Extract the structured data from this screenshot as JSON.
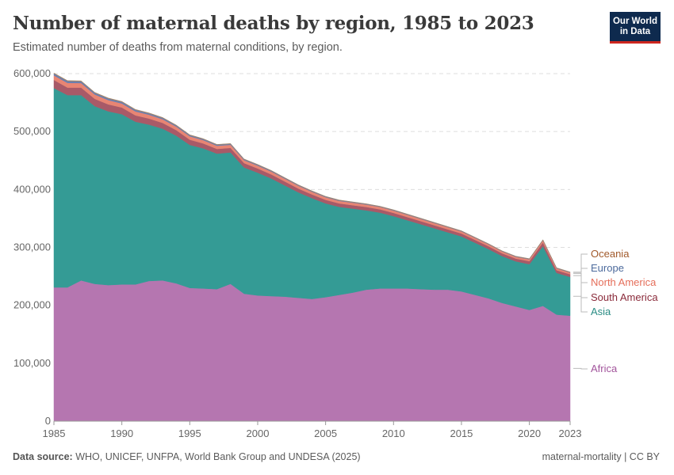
{
  "header": {
    "title": "Number of maternal deaths by region, 1985 to 2023",
    "subtitle": "Estimated number of deaths from maternal conditions, by region.",
    "logo_line1": "Our World",
    "logo_line2": "in Data"
  },
  "footer": {
    "source_label": "Data source:",
    "source_text": " WHO, UNICEF, UNFPA, World Bank Group and UNDESA (2025)",
    "right_text": "maternal-mortality | CC BY"
  },
  "chart_data": {
    "type": "area",
    "stacked": true,
    "title": "Number of maternal deaths by region, 1985 to 2023",
    "subtitle": "Estimated number of deaths from maternal conditions, by region.",
    "xlabel": "",
    "ylabel": "",
    "xlim": [
      1985,
      2023
    ],
    "ylim": [
      0,
      600000
    ],
    "grid": "horizontal-dashed",
    "legend": "right-inline",
    "x_ticks": [
      1985,
      1990,
      1995,
      2000,
      2005,
      2010,
      2015,
      2020,
      2023
    ],
    "y_ticks": [
      0,
      100000,
      200000,
      300000,
      400000,
      500000,
      600000
    ],
    "y_tick_labels": [
      "0",
      "100,000",
      "200,000",
      "300,000",
      "400,000",
      "500,000",
      "600,000"
    ],
    "x": [
      1985,
      1986,
      1987,
      1988,
      1989,
      1990,
      1991,
      1992,
      1993,
      1994,
      1995,
      1996,
      1997,
      1998,
      1999,
      2000,
      2001,
      2002,
      2003,
      2004,
      2005,
      2006,
      2007,
      2008,
      2009,
      2010,
      2011,
      2012,
      2013,
      2014,
      2015,
      2016,
      2017,
      2018,
      2019,
      2020,
      2021,
      2022,
      2023
    ],
    "series": [
      {
        "name": "Africa",
        "color": "#b576b0",
        "label_color": "#a2559c",
        "values": [
          231000,
          231000,
          243000,
          237000,
          235000,
          236000,
          236000,
          242000,
          243000,
          238000,
          230000,
          229000,
          228000,
          237000,
          220000,
          217000,
          216000,
          215000,
          213000,
          211000,
          214000,
          218000,
          222000,
          227000,
          229000,
          229000,
          229000,
          228000,
          227000,
          227000,
          224000,
          218000,
          212000,
          204000,
          198000,
          192000,
          199000,
          184000,
          182000
        ]
      },
      {
        "name": "Asia",
        "color": "#349b95",
        "label_color": "#2a8c84",
        "values": [
          344000,
          332000,
          320000,
          307000,
          300000,
          294000,
          281000,
          270000,
          262000,
          255000,
          247000,
          242000,
          234000,
          227000,
          218000,
          212000,
          203000,
          192000,
          182000,
          174000,
          162000,
          152000,
          145000,
          137000,
          131000,
          125000,
          118000,
          112000,
          106000,
          99000,
          95000,
          90000,
          85000,
          81000,
          78000,
          79000,
          103000,
          72000,
          67000
        ]
      },
      {
        "name": "South America",
        "color": "#a85a68",
        "label_color": "#8a2a3a",
        "values": [
          14000,
          13000,
          13000,
          12500,
          12000,
          11500,
          11000,
          10500,
          10000,
          9500,
          9000,
          8500,
          8000,
          7800,
          7500,
          7200,
          7000,
          6800,
          6600,
          6400,
          6200,
          6000,
          5900,
          5800,
          5700,
          5600,
          5500,
          5400,
          5300,
          5200,
          5100,
          5000,
          4900,
          4800,
          4700,
          5200,
          6500,
          4700,
          4600
        ]
      },
      {
        "name": "North America",
        "color": "#e88573",
        "label_color": "#e56e5a",
        "values": [
          8000,
          8000,
          7700,
          7500,
          7300,
          7000,
          6800,
          6500,
          6300,
          6100,
          5900,
          5700,
          5500,
          5300,
          5100,
          5000,
          4900,
          4800,
          4700,
          4600,
          4500,
          4400,
          4300,
          4200,
          4100,
          4000,
          3900,
          3800,
          3700,
          3600,
          3500,
          3400,
          3300,
          3200,
          3100,
          3300,
          3600,
          3100,
          3000
        ]
      },
      {
        "name": "Europe",
        "color": "#6a7fb0",
        "label_color": "#4c6a9c",
        "values": [
          3000,
          3000,
          2900,
          2800,
          2700,
          2600,
          2500,
          2300,
          2100,
          1900,
          1800,
          1700,
          1600,
          1500,
          1400,
          1300,
          1200,
          1100,
          1000,
          950,
          900,
          850,
          800,
          780,
          760,
          740,
          720,
          700,
          680,
          660,
          640,
          620,
          600,
          580,
          560,
          570,
          620,
          560,
          550
        ]
      },
      {
        "name": "Oceania",
        "color": "#a2866b",
        "label_color": "#a1592a",
        "values": [
          1000,
          1000,
          1000,
          950,
          950,
          900,
          900,
          850,
          850,
          800,
          800,
          780,
          760,
          740,
          720,
          700,
          680,
          660,
          640,
          620,
          600,
          590,
          580,
          570,
          560,
          550,
          540,
          530,
          520,
          510,
          500,
          490,
          480,
          470,
          460,
          460,
          480,
          450,
          450
        ]
      }
    ]
  }
}
